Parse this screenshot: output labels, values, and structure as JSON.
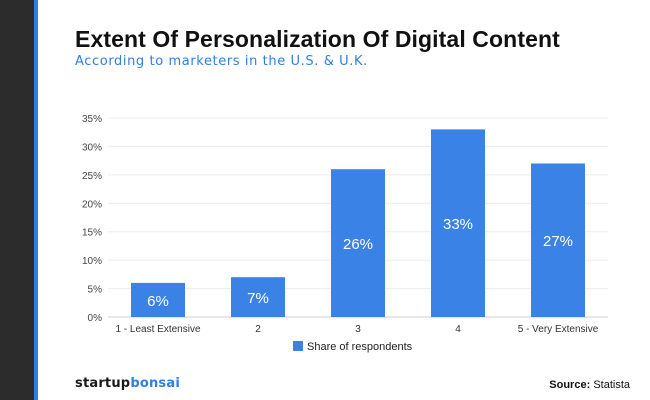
{
  "header": {
    "title": "Extent Of Personalization Of Digital Content",
    "subtitle": "According to marketers in the U.S. & U.K."
  },
  "chart_data": {
    "type": "bar",
    "categories": [
      "1 - Least Extensive",
      "2",
      "3",
      "4",
      "5 - Very Extensive"
    ],
    "series": [
      {
        "name": "Share of respondents",
        "values": [
          6,
          7,
          26,
          33,
          27
        ]
      }
    ],
    "data_labels": [
      "6%",
      "7%",
      "26%",
      "33%",
      "27%"
    ],
    "y_ticks": [
      0,
      5,
      10,
      15,
      20,
      25,
      30,
      35
    ],
    "y_tick_labels": [
      "0%",
      "5%",
      "10%",
      "15%",
      "20%",
      "25%",
      "30%",
      "35%"
    ],
    "ylim": [
      0,
      35
    ],
    "grid": true,
    "legend_position": "bottom-center",
    "title": "Extent Of Personalization Of Digital Content",
    "xlabel": "",
    "ylabel": ""
  },
  "colors": {
    "bar": "#3b82e6",
    "accent": "#2f7fe2",
    "sidebar": "#2c2c2c"
  },
  "footer": {
    "brand_part1": "startup",
    "brand_part2": "bonsai",
    "source_label": "Source:",
    "source_value": "Statista"
  }
}
